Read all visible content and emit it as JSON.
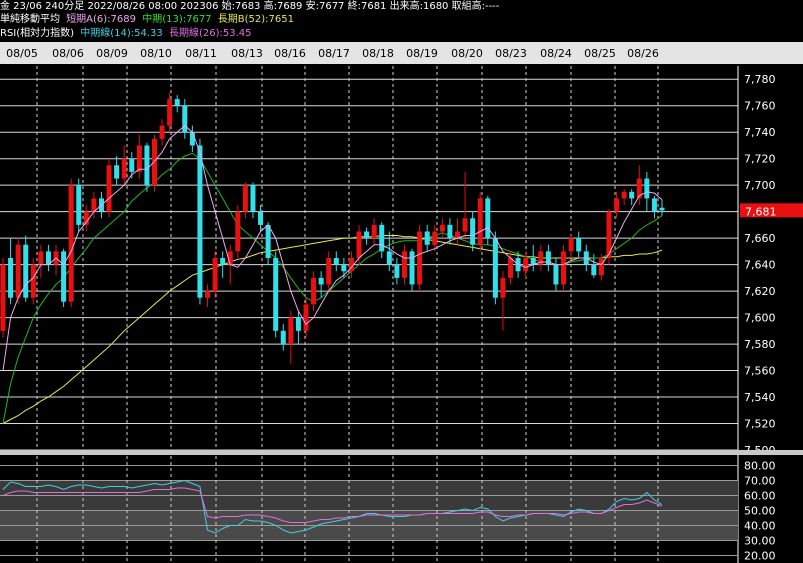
{
  "header": {
    "line1": "金 23/06 240分足 2022/08/26 08:00 202306 始:7683 高:7689 安:7677 終:7681 出来高:1680 取組高:----",
    "ma_title": "単純移動平均",
    "ma_short": "短期A(6):7689",
    "ma_mid": "中期(13):7677",
    "ma_long": "長期B(52):7651",
    "rsi_title": "RSI(相対力指数)",
    "rsi_mid": "中期線(14):54.33",
    "rsi_long": "長期線(26):53.45"
  },
  "colors": {
    "up": "#e81010",
    "down": "#30e0ea",
    "ma_short": "#f0a8f0",
    "ma_mid": "#1fb81f",
    "ma_long": "#e8e850",
    "rsi_mid": "#40d0e0",
    "rsi_long": "#e070e0",
    "price_tag_bg": "#e81010"
  },
  "chart_data": [
    {
      "type": "candlestick",
      "date_labels": [
        "08/05",
        "08/06",
        "08/09",
        "08/10",
        "08/11",
        "08/13",
        "08/16",
        "08/17",
        "08/18",
        "08/19",
        "08/20",
        "08/23",
        "08/24",
        "08/25",
        "08/26"
      ],
      "y_ticks": [
        "7,780",
        "7,760",
        "7,740",
        "7,720",
        "7,700",
        "7,680",
        "7,660",
        "7,640",
        "7,620",
        "7,600",
        "7,580",
        "7,560",
        "7,540",
        "7,520",
        "7,500"
      ],
      "ylim": [
        7500,
        7790
      ],
      "current_price_label": "7,681",
      "current_price": 7681,
      "candles": [
        [
          7590,
          7640,
          7585,
          7645
        ],
        [
          7645,
          7615,
          7610,
          7660
        ],
        [
          7615,
          7655,
          7610,
          7660
        ],
        [
          7655,
          7615,
          7612,
          7662
        ],
        [
          7615,
          7640,
          7610,
          7645
        ],
        [
          7640,
          7650,
          7630,
          7655
        ],
        [
          7650,
          7640,
          7635,
          7655
        ],
        [
          7640,
          7650,
          7632,
          7655
        ],
        [
          7650,
          7612,
          7608,
          7652
        ],
        [
          7612,
          7700,
          7608,
          7705
        ],
        [
          7700,
          7670,
          7665,
          7705
        ],
        [
          7670,
          7680,
          7665,
          7685
        ],
        [
          7680,
          7690,
          7675,
          7695
        ],
        [
          7690,
          7680,
          7675,
          7695
        ],
        [
          7680,
          7715,
          7676,
          7720
        ],
        [
          7715,
          7705,
          7700,
          7722
        ],
        [
          7705,
          7720,
          7700,
          7730
        ],
        [
          7720,
          7710,
          7705,
          7725
        ],
        [
          7710,
          7730,
          7705,
          7738
        ],
        [
          7730,
          7700,
          7695,
          7732
        ],
        [
          7700,
          7735,
          7695,
          7738
        ],
        [
          7735,
          7745,
          7730,
          7750
        ],
        [
          7745,
          7765,
          7740,
          7770
        ],
        [
          7765,
          7760,
          7755,
          7768
        ],
        [
          7760,
          7740,
          7735,
          7765
        ],
        [
          7740,
          7730,
          7725,
          7745
        ],
        [
          7730,
          7615,
          7610,
          7735
        ],
        [
          7615,
          7620,
          7608,
          7625
        ],
        [
          7620,
          7645,
          7615,
          7650
        ],
        [
          7645,
          7640,
          7630,
          7650
        ],
        [
          7640,
          7650,
          7625,
          7655
        ],
        [
          7650,
          7680,
          7645,
          7685
        ],
        [
          7680,
          7700,
          7675,
          7702
        ],
        [
          7700,
          7680,
          7675,
          7702
        ],
        [
          7680,
          7670,
          7665,
          7685
        ],
        [
          7670,
          7645,
          7640,
          7672
        ],
        [
          7645,
          7590,
          7585,
          7650
        ],
        [
          7590,
          7580,
          7575,
          7595
        ],
        [
          7580,
          7600,
          7565,
          7605
        ],
        [
          7600,
          7590,
          7580,
          7605
        ],
        [
          7590,
          7610,
          7585,
          7615
        ],
        [
          7610,
          7630,
          7605,
          7635
        ],
        [
          7630,
          7625,
          7615,
          7635
        ],
        [
          7625,
          7645,
          7620,
          7650
        ],
        [
          7645,
          7640,
          7635,
          7650
        ],
        [
          7640,
          7635,
          7630,
          7645
        ],
        [
          7635,
          7645,
          7630,
          7650
        ],
        [
          7645,
          7665,
          7640,
          7670
        ],
        [
          7665,
          7660,
          7655,
          7668
        ],
        [
          7660,
          7670,
          7655,
          7675
        ],
        [
          7670,
          7650,
          7645,
          7672
        ],
        [
          7650,
          7640,
          7635,
          7665
        ],
        [
          7640,
          7630,
          7625,
          7645
        ],
        [
          7630,
          7650,
          7625,
          7655
        ],
        [
          7650,
          7625,
          7620,
          7652
        ],
        [
          7625,
          7665,
          7620,
          7670
        ],
        [
          7665,
          7655,
          7650,
          7670
        ],
        [
          7655,
          7665,
          7650,
          7670
        ],
        [
          7665,
          7670,
          7660,
          7675
        ],
        [
          7670,
          7660,
          7655,
          7675
        ],
        [
          7660,
          7665,
          7655,
          7675
        ],
        [
          7665,
          7675,
          7660,
          7710
        ],
        [
          7675,
          7655,
          7650,
          7680
        ],
        [
          7655,
          7690,
          7650,
          7695
        ],
        [
          7690,
          7660,
          7655,
          7692
        ],
        [
          7660,
          7615,
          7610,
          7665
        ],
        [
          7615,
          7630,
          7590,
          7635
        ],
        [
          7630,
          7645,
          7625,
          7650
        ],
        [
          7645,
          7635,
          7630,
          7650
        ],
        [
          7635,
          7645,
          7630,
          7650
        ],
        [
          7645,
          7640,
          7635,
          7655
        ],
        [
          7640,
          7650,
          7635,
          7655
        ],
        [
          7650,
          7640,
          7635,
          7655
        ],
        [
          7640,
          7625,
          7620,
          7645
        ],
        [
          7625,
          7650,
          7620,
          7655
        ],
        [
          7650,
          7660,
          7645,
          7662
        ],
        [
          7660,
          7650,
          7645,
          7665
        ],
        [
          7650,
          7640,
          7635,
          7655
        ],
        [
          7640,
          7632,
          7630,
          7648
        ],
        [
          7632,
          7645,
          7628,
          7648
        ],
        [
          7645,
          7680,
          7640,
          7682
        ],
        [
          7680,
          7690,
          7675,
          7695
        ],
        [
          7690,
          7695,
          7685,
          7697
        ],
        [
          7695,
          7690,
          7685,
          7697
        ],
        [
          7690,
          7705,
          7685,
          7715
        ],
        [
          7705,
          7690,
          7680,
          7710
        ],
        [
          7690,
          7680,
          7675,
          7692
        ],
        [
          7683,
          7681,
          7677,
          7689
        ]
      ],
      "ma_short_values": [
        7560,
        7600,
        7615,
        7625,
        7630,
        7640,
        7640,
        7645,
        7640,
        7650,
        7665,
        7672,
        7680,
        7685,
        7690,
        7695,
        7700,
        7708,
        7712,
        7712,
        7718,
        7725,
        7735,
        7740,
        7745,
        7740,
        7725,
        7700,
        7680,
        7660,
        7640,
        7638,
        7645,
        7655,
        7665,
        7670,
        7660,
        7640,
        7620,
        7605,
        7595,
        7600,
        7610,
        7620,
        7628,
        7632,
        7638,
        7645,
        7650,
        7655,
        7655,
        7652,
        7648,
        7645,
        7645,
        7648,
        7650,
        7652,
        7655,
        7658,
        7660,
        7662,
        7662,
        7665,
        7668,
        7660,
        7650,
        7645,
        7640,
        7638,
        7640,
        7642,
        7642,
        7640,
        7640,
        7643,
        7645,
        7645,
        7642,
        7640,
        7648,
        7660,
        7672,
        7682,
        7692,
        7695,
        7694,
        7689
      ],
      "ma_mid_values": [
        7520,
        7550,
        7570,
        7585,
        7600,
        7610,
        7618,
        7625,
        7630,
        7638,
        7645,
        7652,
        7660,
        7665,
        7670,
        7675,
        7680,
        7688,
        7693,
        7698,
        7702,
        7708,
        7712,
        7718,
        7722,
        7724,
        7720,
        7710,
        7700,
        7690,
        7680,
        7670,
        7665,
        7660,
        7655,
        7650,
        7645,
        7638,
        7630,
        7622,
        7615,
        7612,
        7615,
        7620,
        7625,
        7630,
        7635,
        7640,
        7645,
        7648,
        7652,
        7655,
        7657,
        7658,
        7658,
        7658,
        7660,
        7662,
        7664,
        7662,
        7660,
        7658,
        7656,
        7655,
        7655,
        7654,
        7652,
        7650,
        7648,
        7646,
        7644,
        7642,
        7642,
        7640,
        7640,
        7642,
        7643,
        7644,
        7645,
        7645,
        7648,
        7652,
        7656,
        7660,
        7666,
        7670,
        7673,
        7677
      ],
      "ma_long_values": [
        7520,
        7523,
        7526,
        7530,
        7533,
        7537,
        7540,
        7544,
        7548,
        7553,
        7558,
        7563,
        7568,
        7573,
        7578,
        7584,
        7590,
        7595,
        7600,
        7605,
        7610,
        7615,
        7620,
        7624,
        7628,
        7632,
        7634,
        7636,
        7638,
        7640,
        7642,
        7644,
        7645,
        7647,
        7649,
        7650,
        7651,
        7652,
        7653,
        7654,
        7655,
        7656,
        7657,
        7658,
        7659,
        7660,
        7660,
        7661,
        7661,
        7661,
        7662,
        7662,
        7662,
        7661,
        7661,
        7660,
        7659,
        7658,
        7657,
        7656,
        7655,
        7654,
        7653,
        7652,
        7651,
        7650,
        7649,
        7648,
        7647,
        7646,
        7646,
        7645,
        7645,
        7645,
        7645,
        7645,
        7645,
        7645,
        7645,
        7645,
        7646,
        7646,
        7647,
        7647,
        7648,
        7648,
        7649,
        7651
      ]
    },
    {
      "type": "line",
      "title": "RSI",
      "y_ticks": [
        "80.00",
        "70.00",
        "60.00",
        "50.00",
        "40.00",
        "30.00",
        "20.00"
      ],
      "ylim": [
        15,
        87
      ],
      "series": [
        {
          "name": "中期線(14)",
          "values": [
            64,
            69,
            68,
            66,
            66,
            66,
            67,
            66,
            64,
            66,
            67,
            67,
            66,
            65,
            66,
            66,
            66,
            65,
            66,
            67,
            68,
            67,
            68,
            69,
            70,
            68,
            66,
            37,
            35,
            38,
            40,
            40,
            44,
            43,
            43,
            42,
            40,
            37,
            35,
            36,
            37,
            39,
            41,
            42,
            43,
            44,
            45,
            46,
            48,
            48,
            47,
            46,
            46,
            46,
            47,
            47,
            48,
            48,
            48,
            49,
            50,
            51,
            50,
            52,
            51,
            46,
            43,
            45,
            46,
            47,
            48,
            48,
            48,
            47,
            46,
            49,
            51,
            50,
            48,
            48,
            51,
            56,
            58,
            57,
            58,
            62,
            57,
            54
          ]
        },
        {
          "name": "長期線(26)",
          "values": [
            60,
            62,
            63,
            63,
            62,
            62,
            62,
            62,
            62,
            62,
            62,
            62,
            62,
            62,
            62,
            62,
            62,
            62,
            62,
            63,
            64,
            64,
            64,
            65,
            65,
            64,
            63,
            46,
            45,
            46,
            46,
            46,
            47,
            47,
            47,
            46,
            45,
            43,
            42,
            42,
            42,
            43,
            44,
            44,
            45,
            45,
            46,
            46,
            47,
            47,
            47,
            47,
            47,
            47,
            47,
            47,
            48,
            48,
            48,
            48,
            48,
            48,
            48,
            49,
            49,
            47,
            46,
            46,
            47,
            47,
            48,
            48,
            48,
            48,
            47,
            48,
            49,
            49,
            48,
            48,
            50,
            52,
            54,
            54,
            55,
            57,
            55,
            53
          ]
        }
      ]
    }
  ]
}
